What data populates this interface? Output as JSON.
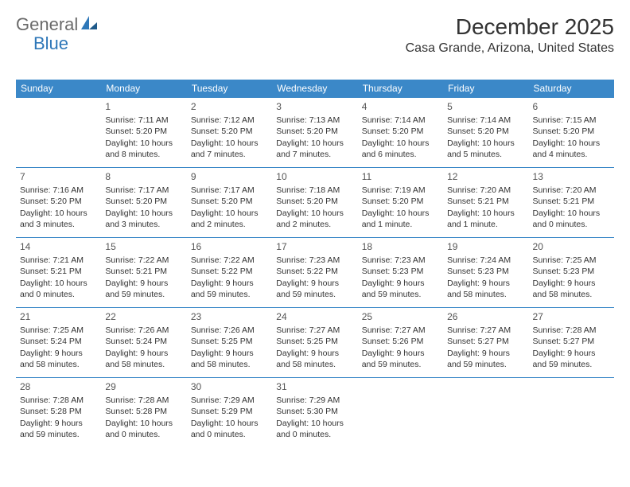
{
  "logo": {
    "general": "General",
    "blue": "Blue"
  },
  "title": "December 2025",
  "location": "Casa Grande, Arizona, United States",
  "colors": {
    "header_bg": "#3b88c8",
    "header_text": "#ffffff",
    "border": "#3b88c8",
    "text": "#333333",
    "logo_gray": "#6a6a6a",
    "logo_blue": "#2e77b8"
  },
  "weekdays": [
    "Sunday",
    "Monday",
    "Tuesday",
    "Wednesday",
    "Thursday",
    "Friday",
    "Saturday"
  ],
  "weeks": [
    [
      null,
      {
        "n": "1",
        "sr": "Sunrise: 7:11 AM",
        "ss": "Sunset: 5:20 PM",
        "dl": "Daylight: 10 hours and 8 minutes."
      },
      {
        "n": "2",
        "sr": "Sunrise: 7:12 AM",
        "ss": "Sunset: 5:20 PM",
        "dl": "Daylight: 10 hours and 7 minutes."
      },
      {
        "n": "3",
        "sr": "Sunrise: 7:13 AM",
        "ss": "Sunset: 5:20 PM",
        "dl": "Daylight: 10 hours and 7 minutes."
      },
      {
        "n": "4",
        "sr": "Sunrise: 7:14 AM",
        "ss": "Sunset: 5:20 PM",
        "dl": "Daylight: 10 hours and 6 minutes."
      },
      {
        "n": "5",
        "sr": "Sunrise: 7:14 AM",
        "ss": "Sunset: 5:20 PM",
        "dl": "Daylight: 10 hours and 5 minutes."
      },
      {
        "n": "6",
        "sr": "Sunrise: 7:15 AM",
        "ss": "Sunset: 5:20 PM",
        "dl": "Daylight: 10 hours and 4 minutes."
      }
    ],
    [
      {
        "n": "7",
        "sr": "Sunrise: 7:16 AM",
        "ss": "Sunset: 5:20 PM",
        "dl": "Daylight: 10 hours and 3 minutes."
      },
      {
        "n": "8",
        "sr": "Sunrise: 7:17 AM",
        "ss": "Sunset: 5:20 PM",
        "dl": "Daylight: 10 hours and 3 minutes."
      },
      {
        "n": "9",
        "sr": "Sunrise: 7:17 AM",
        "ss": "Sunset: 5:20 PM",
        "dl": "Daylight: 10 hours and 2 minutes."
      },
      {
        "n": "10",
        "sr": "Sunrise: 7:18 AM",
        "ss": "Sunset: 5:20 PM",
        "dl": "Daylight: 10 hours and 2 minutes."
      },
      {
        "n": "11",
        "sr": "Sunrise: 7:19 AM",
        "ss": "Sunset: 5:20 PM",
        "dl": "Daylight: 10 hours and 1 minute."
      },
      {
        "n": "12",
        "sr": "Sunrise: 7:20 AM",
        "ss": "Sunset: 5:21 PM",
        "dl": "Daylight: 10 hours and 1 minute."
      },
      {
        "n": "13",
        "sr": "Sunrise: 7:20 AM",
        "ss": "Sunset: 5:21 PM",
        "dl": "Daylight: 10 hours and 0 minutes."
      }
    ],
    [
      {
        "n": "14",
        "sr": "Sunrise: 7:21 AM",
        "ss": "Sunset: 5:21 PM",
        "dl": "Daylight: 10 hours and 0 minutes."
      },
      {
        "n": "15",
        "sr": "Sunrise: 7:22 AM",
        "ss": "Sunset: 5:21 PM",
        "dl": "Daylight: 9 hours and 59 minutes."
      },
      {
        "n": "16",
        "sr": "Sunrise: 7:22 AM",
        "ss": "Sunset: 5:22 PM",
        "dl": "Daylight: 9 hours and 59 minutes."
      },
      {
        "n": "17",
        "sr": "Sunrise: 7:23 AM",
        "ss": "Sunset: 5:22 PM",
        "dl": "Daylight: 9 hours and 59 minutes."
      },
      {
        "n": "18",
        "sr": "Sunrise: 7:23 AM",
        "ss": "Sunset: 5:23 PM",
        "dl": "Daylight: 9 hours and 59 minutes."
      },
      {
        "n": "19",
        "sr": "Sunrise: 7:24 AM",
        "ss": "Sunset: 5:23 PM",
        "dl": "Daylight: 9 hours and 58 minutes."
      },
      {
        "n": "20",
        "sr": "Sunrise: 7:25 AM",
        "ss": "Sunset: 5:23 PM",
        "dl": "Daylight: 9 hours and 58 minutes."
      }
    ],
    [
      {
        "n": "21",
        "sr": "Sunrise: 7:25 AM",
        "ss": "Sunset: 5:24 PM",
        "dl": "Daylight: 9 hours and 58 minutes."
      },
      {
        "n": "22",
        "sr": "Sunrise: 7:26 AM",
        "ss": "Sunset: 5:24 PM",
        "dl": "Daylight: 9 hours and 58 minutes."
      },
      {
        "n": "23",
        "sr": "Sunrise: 7:26 AM",
        "ss": "Sunset: 5:25 PM",
        "dl": "Daylight: 9 hours and 58 minutes."
      },
      {
        "n": "24",
        "sr": "Sunrise: 7:27 AM",
        "ss": "Sunset: 5:25 PM",
        "dl": "Daylight: 9 hours and 58 minutes."
      },
      {
        "n": "25",
        "sr": "Sunrise: 7:27 AM",
        "ss": "Sunset: 5:26 PM",
        "dl": "Daylight: 9 hours and 59 minutes."
      },
      {
        "n": "26",
        "sr": "Sunrise: 7:27 AM",
        "ss": "Sunset: 5:27 PM",
        "dl": "Daylight: 9 hours and 59 minutes."
      },
      {
        "n": "27",
        "sr": "Sunrise: 7:28 AM",
        "ss": "Sunset: 5:27 PM",
        "dl": "Daylight: 9 hours and 59 minutes."
      }
    ],
    [
      {
        "n": "28",
        "sr": "Sunrise: 7:28 AM",
        "ss": "Sunset: 5:28 PM",
        "dl": "Daylight: 9 hours and 59 minutes."
      },
      {
        "n": "29",
        "sr": "Sunrise: 7:28 AM",
        "ss": "Sunset: 5:28 PM",
        "dl": "Daylight: 10 hours and 0 minutes."
      },
      {
        "n": "30",
        "sr": "Sunrise: 7:29 AM",
        "ss": "Sunset: 5:29 PM",
        "dl": "Daylight: 10 hours and 0 minutes."
      },
      {
        "n": "31",
        "sr": "Sunrise: 7:29 AM",
        "ss": "Sunset: 5:30 PM",
        "dl": "Daylight: 10 hours and 0 minutes."
      },
      null,
      null,
      null
    ]
  ]
}
